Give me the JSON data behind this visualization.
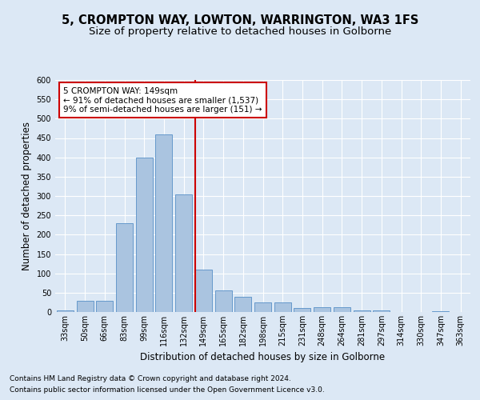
{
  "title_line1": "5, CROMPTON WAY, LOWTON, WARRINGTON, WA3 1FS",
  "title_line2": "Size of property relative to detached houses in Golborne",
  "xlabel": "Distribution of detached houses by size in Golborne",
  "ylabel": "Number of detached properties",
  "categories": [
    "33sqm",
    "50sqm",
    "66sqm",
    "83sqm",
    "99sqm",
    "116sqm",
    "132sqm",
    "149sqm",
    "165sqm",
    "182sqm",
    "198sqm",
    "215sqm",
    "231sqm",
    "248sqm",
    "264sqm",
    "281sqm",
    "297sqm",
    "314sqm",
    "330sqm",
    "347sqm",
    "363sqm"
  ],
  "values": [
    5,
    28,
    28,
    230,
    400,
    460,
    305,
    110,
    55,
    40,
    25,
    25,
    10,
    12,
    12,
    5,
    5,
    0,
    0,
    3,
    0
  ],
  "bar_color": "#aac4e0",
  "bar_edge_color": "#6699cc",
  "property_bar_index": 7,
  "vline_color": "#cc0000",
  "annotation_text": "5 CROMPTON WAY: 149sqm\n← 91% of detached houses are smaller (1,537)\n9% of semi-detached houses are larger (151) →",
  "annotation_box_color": "#ffffff",
  "annotation_box_edge_color": "#cc0000",
  "ylim": [
    0,
    600
  ],
  "yticks": [
    0,
    50,
    100,
    150,
    200,
    250,
    300,
    350,
    400,
    450,
    500,
    550,
    600
  ],
  "footer_line1": "Contains HM Land Registry data © Crown copyright and database right 2024.",
  "footer_line2": "Contains public sector information licensed under the Open Government Licence v3.0.",
  "background_color": "#dce8f5",
  "plot_background_color": "#dce8f5",
  "grid_color": "#ffffff",
  "title_fontsize": 10.5,
  "subtitle_fontsize": 9.5,
  "axis_label_fontsize": 8.5,
  "tick_fontsize": 7,
  "footer_fontsize": 6.5,
  "annotation_fontsize": 7.5
}
